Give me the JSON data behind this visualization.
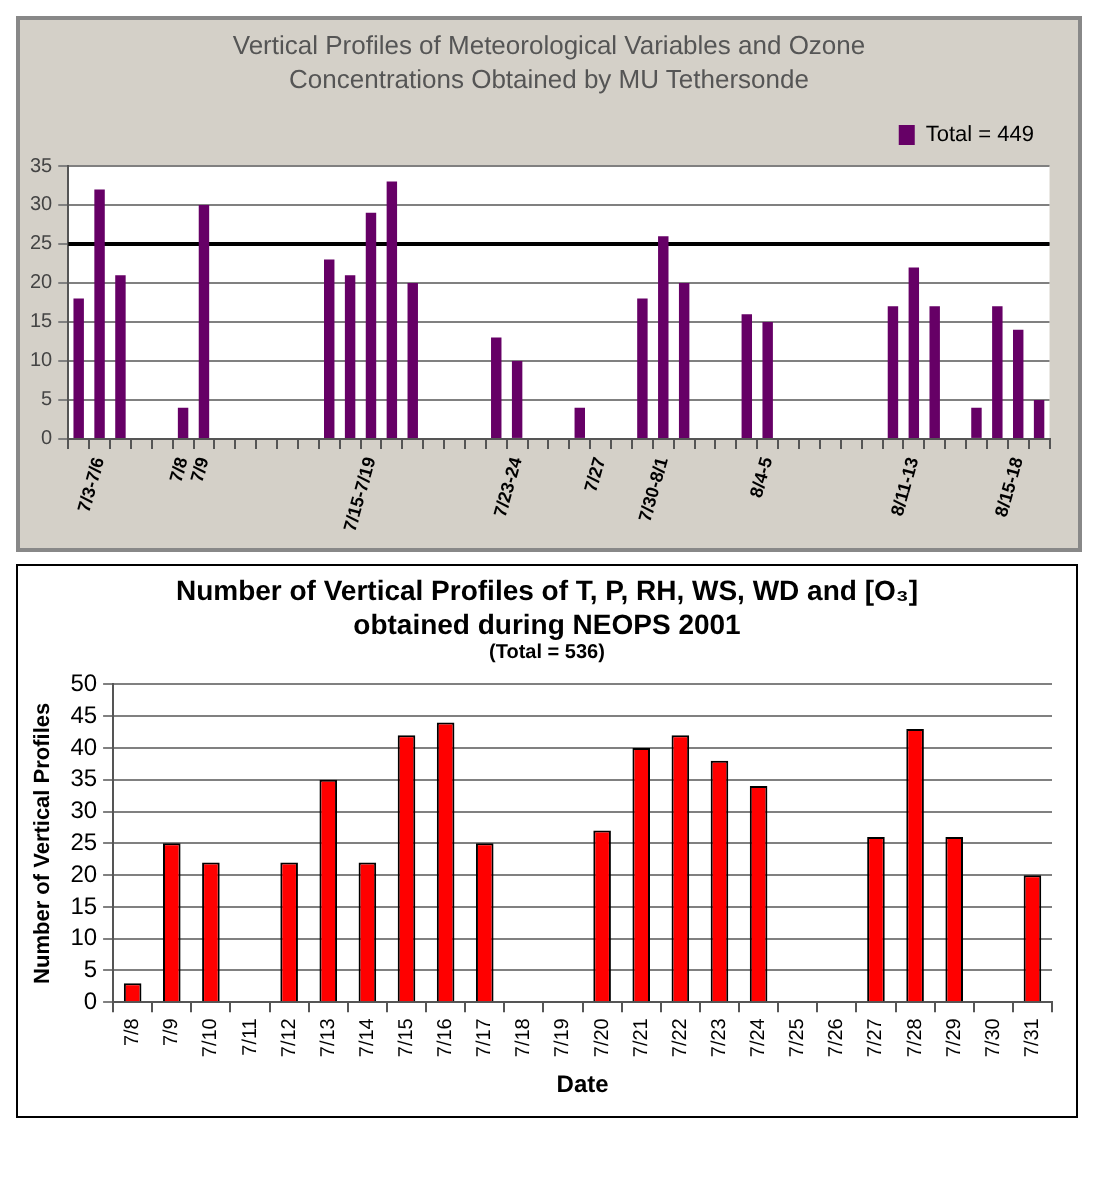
{
  "chart_data": [
    {
      "type": "bar",
      "title": "Vertical Profiles of Meteorological Variables and Ozone Concentrations Obtained by MU Tethersonde",
      "categories": [
        null,
        "7/3-7/6",
        null,
        null,
        null,
        "7/8",
        "7/9",
        null,
        null,
        null,
        null,
        null,
        null,
        null,
        "7/15-7/19",
        null,
        null,
        null,
        null,
        null,
        null,
        "7/23-24",
        null,
        null,
        null,
        "7/27",
        null,
        null,
        "7/30-8/1",
        null,
        null,
        null,
        null,
        "8/4-5",
        null,
        null,
        null,
        null,
        null,
        null,
        "8/11-13",
        null,
        null,
        null,
        null,
        "8/15-18",
        null
      ],
      "series": [
        {
          "name": "Total = 449",
          "color": "#660066",
          "values": [
            18,
            32,
            21,
            null,
            null,
            4,
            30,
            null,
            null,
            null,
            null,
            null,
            23,
            21,
            29,
            33,
            20,
            null,
            null,
            null,
            13,
            10,
            null,
            null,
            4,
            null,
            null,
            18,
            26,
            20,
            null,
            null,
            16,
            15,
            null,
            null,
            null,
            null,
            null,
            17,
            22,
            17,
            null,
            4,
            17,
            14,
            5
          ]
        }
      ],
      "ylim": [
        0,
        35
      ],
      "yticks": [
        0,
        5,
        10,
        15,
        20,
        25,
        30,
        35
      ],
      "grid": "y",
      "legend": "top right",
      "ref_lines": [
        {
          "axis": "y",
          "value": 25,
          "color": "#000000"
        }
      ]
    },
    {
      "type": "bar",
      "title": "Number of Vertical Profiles of T, P, RH, WS, WD and [O₃] obtained during NEOPS 2001",
      "subtitle": "(Total = 536)",
      "xlabel": "Date",
      "ylabel": "Number of Vertical Profiles",
      "categories": [
        "7/8",
        "7/9",
        "7/10",
        "7/11",
        "7/12",
        "7/13",
        "7/14",
        "7/15",
        "7/16",
        "7/17",
        "7/18",
        "7/19",
        "7/20",
        "7/21",
        "7/22",
        "7/23",
        "7/24",
        "7/25",
        "7/26",
        "7/27",
        "7/28",
        "7/29",
        "7/30",
        "7/31"
      ],
      "series": [
        {
          "color": "#ff0000",
          "values": [
            3,
            25,
            22,
            0,
            22,
            35,
            22,
            42,
            44,
            25,
            0,
            0,
            27,
            40,
            42,
            38,
            34,
            0,
            0,
            26,
            43,
            26,
            0,
            20
          ]
        }
      ],
      "ylim": [
        0,
        50
      ],
      "yticks": [
        0,
        5,
        10,
        15,
        20,
        25,
        30,
        35,
        40,
        45,
        50
      ],
      "grid": "y"
    }
  ]
}
